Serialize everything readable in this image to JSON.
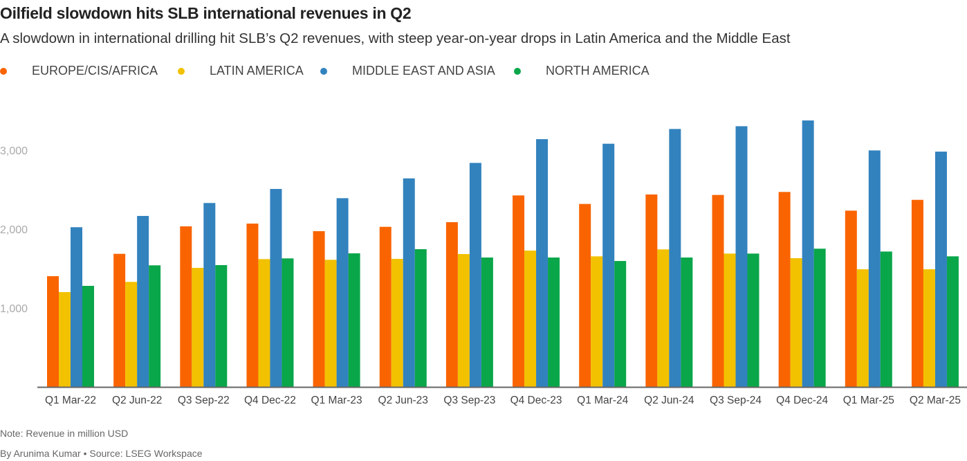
{
  "title": "Oilfield slowdown hits SLB international revenues in Q2",
  "subtitle": "A slowdown in international drilling hit SLB’s Q2 revenues, with steep year-on-year drops in Latin America and the Middle East",
  "note": "Note: Revenue in million USD",
  "byline": "By Arunima Kumar • Source: LSEG Workspace",
  "chart_data": {
    "type": "bar",
    "title": "Oilfield slowdown hits SLB international revenues in Q2",
    "xlabel": "",
    "ylabel": "",
    "ylim": [
      0,
      3400
    ],
    "yticks": [
      1000,
      2000,
      3000
    ],
    "ytick_labels": [
      "1,000",
      "2,000",
      "3,000"
    ],
    "grid": false,
    "legend_position": "top-left",
    "categories": [
      "Q1 Mar-22",
      "Q2 Jun-22",
      "Q3 Sep-22",
      "Q4 Dec-22",
      "Q1 Mar-23",
      "Q2 Jun-23",
      "Q3 Sep-23",
      "Q4 Dec-23",
      "Q1 Mar-24",
      "Q2 Jun-24",
      "Q3 Sep-24",
      "Q4 Dec-24",
      "Q1 Mar-25",
      "Q2 Mar-25"
    ],
    "series": [
      {
        "name": "EUROPE/CIS/AFRICA",
        "color": "#f96400",
        "values": [
          1404,
          1687,
          2035,
          2070,
          1974,
          2029,
          2088,
          2427,
          2319,
          2439,
          2433,
          2471,
          2234,
          2371
        ]
      },
      {
        "name": "LATIN AMERICA",
        "color": "#f2c100",
        "values": [
          1202,
          1331,
          1509,
          1620,
          1611,
          1623,
          1684,
          1728,
          1655,
          1743,
          1690,
          1632,
          1491,
          1491
        ]
      },
      {
        "name": "MIDDLE EAST AND ASIA",
        "color": "#3282be",
        "values": [
          2024,
          2167,
          2331,
          2509,
          2392,
          2643,
          2839,
          3140,
          3082,
          3269,
          3304,
          3377,
          2997,
          2982
        ]
      },
      {
        "name": "NORTH AMERICA",
        "color": "#0aa64a",
        "values": [
          1281,
          1541,
          1544,
          1629,
          1693,
          1746,
          1640,
          1640,
          1596,
          1640,
          1690,
          1752,
          1716,
          1655
        ]
      }
    ]
  }
}
